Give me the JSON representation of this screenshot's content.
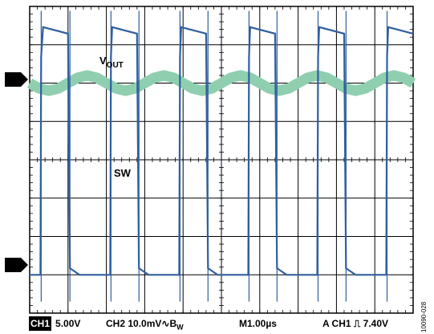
{
  "chart_data": {
    "type": "line",
    "series": [
      {
        "name": "VOUT",
        "channel": "2",
        "color": "#8fcfb0",
        "x": [
          0,
          0.25,
          0.5,
          0.75,
          1,
          1.25,
          1.5,
          1.75,
          2,
          2.25,
          2.5,
          2.75,
          3,
          3.25,
          3.5,
          3.75,
          4,
          4.25,
          4.5,
          4.75,
          5,
          5.25,
          5.5,
          5.75,
          6,
          6.25,
          6.5,
          6.75,
          7,
          7.25,
          7.5,
          7.75,
          8,
          8.25,
          8.5,
          8.75,
          9,
          9.25,
          9.5,
          9.75,
          10
        ],
        "y": [
          0.0,
          -0.14,
          -0.2,
          -0.14,
          0.0,
          0.14,
          0.2,
          0.14,
          0.0,
          -0.14,
          -0.2,
          -0.14,
          0.0,
          0.14,
          0.2,
          0.14,
          0.0,
          -0.14,
          -0.2,
          -0.14,
          0.0,
          0.14,
          0.2,
          0.14,
          0.0,
          -0.14,
          -0.2,
          -0.14,
          0.0,
          0.14,
          0.2,
          0.14,
          0.0,
          -0.14,
          -0.2,
          -0.14,
          0.0,
          0.14,
          0.2,
          0.14,
          0.0
        ]
      },
      {
        "name": "SW",
        "channel": "1",
        "color": "#2f5fa0",
        "x": [
          0,
          0.28,
          0.3,
          0.35,
          1,
          1.05,
          1.3,
          1.32,
          2.1,
          2.12,
          2.15,
          2.8,
          2.85,
          3.1,
          3.12,
          3.9,
          3.92,
          3.95,
          4.6,
          4.65,
          4.9,
          4.92,
          5.7,
          5.72,
          5.75,
          6.4,
          6.45,
          6.7,
          6.72,
          7.5,
          7.52,
          7.55,
          8.2,
          8.25,
          8.5,
          8.52,
          9.3,
          9.32,
          9.35,
          10
        ],
        "y": [
          0,
          0,
          6.7,
          7.6,
          7.4,
          0.2,
          0,
          0,
          0,
          6.7,
          7.6,
          7.4,
          0.2,
          0,
          0,
          0,
          6.7,
          7.6,
          7.4,
          0.2,
          0,
          0,
          0,
          6.7,
          7.6,
          7.4,
          0.2,
          0,
          0,
          0,
          6.7,
          7.6,
          7.4,
          0.2,
          0,
          0,
          0,
          6.7,
          7.6,
          7.4
        ]
      }
    ],
    "grid": {
      "divisions_x": 10,
      "divisions_y": 8
    },
    "xlim": [
      0,
      10
    ],
    "ylim": [
      -1,
      9
    ],
    "channel_offsets": {
      "2": 2.0,
      "1": -3.0
    },
    "labels": {
      "vout_main": "V",
      "vout_sub": "OUT",
      "sw": "SW"
    },
    "markers": {
      "ch2": "2",
      "ch1": "1"
    }
  },
  "status": {
    "ch1_tag": "CH1",
    "ch1_scale": "5.00V",
    "ch2_scale": "CH2 10.0mV",
    "bw_symbol": "∿",
    "bw_main": "B",
    "bw_sub": "W",
    "timebase": "M1.00µs",
    "trigger_prefix": "A CH1",
    "trigger_slope": "⎍",
    "trigger_level": "7.40V"
  },
  "figure_id": "10090-028"
}
